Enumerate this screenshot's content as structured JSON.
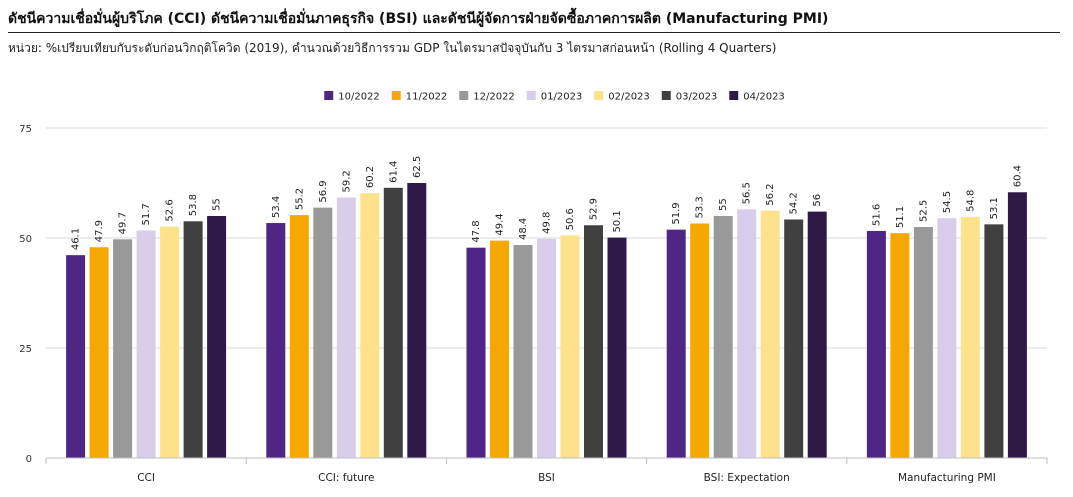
{
  "header": {
    "title": "ดัชนีความเชื่อมั่นผู้บริโภค (CCI) ดัชนีความเชื่อมั่นภาคธุรกิจ (BSI) และดัชนีผู้จัดการฝ่ายจัดซื้อภาคการผลิต (Manufacturing PMI)",
    "subtitle": "หน่วย: %เปรียบเทียบกับระดับก่อนวิกฤติโควิด (2019), คำนวณด้วยวิธีการรวม GDP ในไตรมาสปัจจุบันกับ 3 ไตรมาสก่อนหน้า (Rolling 4 Quarters)"
  },
  "chart_data": {
    "type": "bar",
    "categories": [
      "CCI",
      "CCI: future",
      "BSI",
      "BSI: Expectation",
      "Manufacturing PMI"
    ],
    "series": [
      {
        "name": "10/2022",
        "color": "#4f2683",
        "values": [
          46.1,
          53.4,
          47.8,
          51.9,
          51.6
        ]
      },
      {
        "name": "11/2022",
        "color": "#f6a800",
        "values": [
          47.9,
          55.2,
          49.4,
          53.3,
          51.1
        ]
      },
      {
        "name": "12/2022",
        "color": "#999999",
        "values": [
          49.7,
          56.9,
          48.4,
          55,
          52.5
        ]
      },
      {
        "name": "01/2023",
        "color": "#d9cdec",
        "values": [
          51.7,
          59.2,
          49.8,
          56.5,
          54.5
        ]
      },
      {
        "name": "02/2023",
        "color": "#fde18b",
        "values": [
          52.6,
          60.2,
          50.6,
          56.2,
          54.8
        ]
      },
      {
        "name": "03/2023",
        "color": "#404040",
        "values": [
          53.8,
          61.4,
          52.9,
          54.2,
          53.1
        ]
      },
      {
        "name": "04/2023",
        "color": "#2e1a47",
        "values": [
          55,
          62.5,
          50.1,
          56,
          60.4
        ]
      }
    ],
    "yticks": [
      0,
      25,
      50,
      75
    ],
    "ylim": [
      0,
      75
    ],
    "grid": true,
    "legend": "top-center"
  }
}
